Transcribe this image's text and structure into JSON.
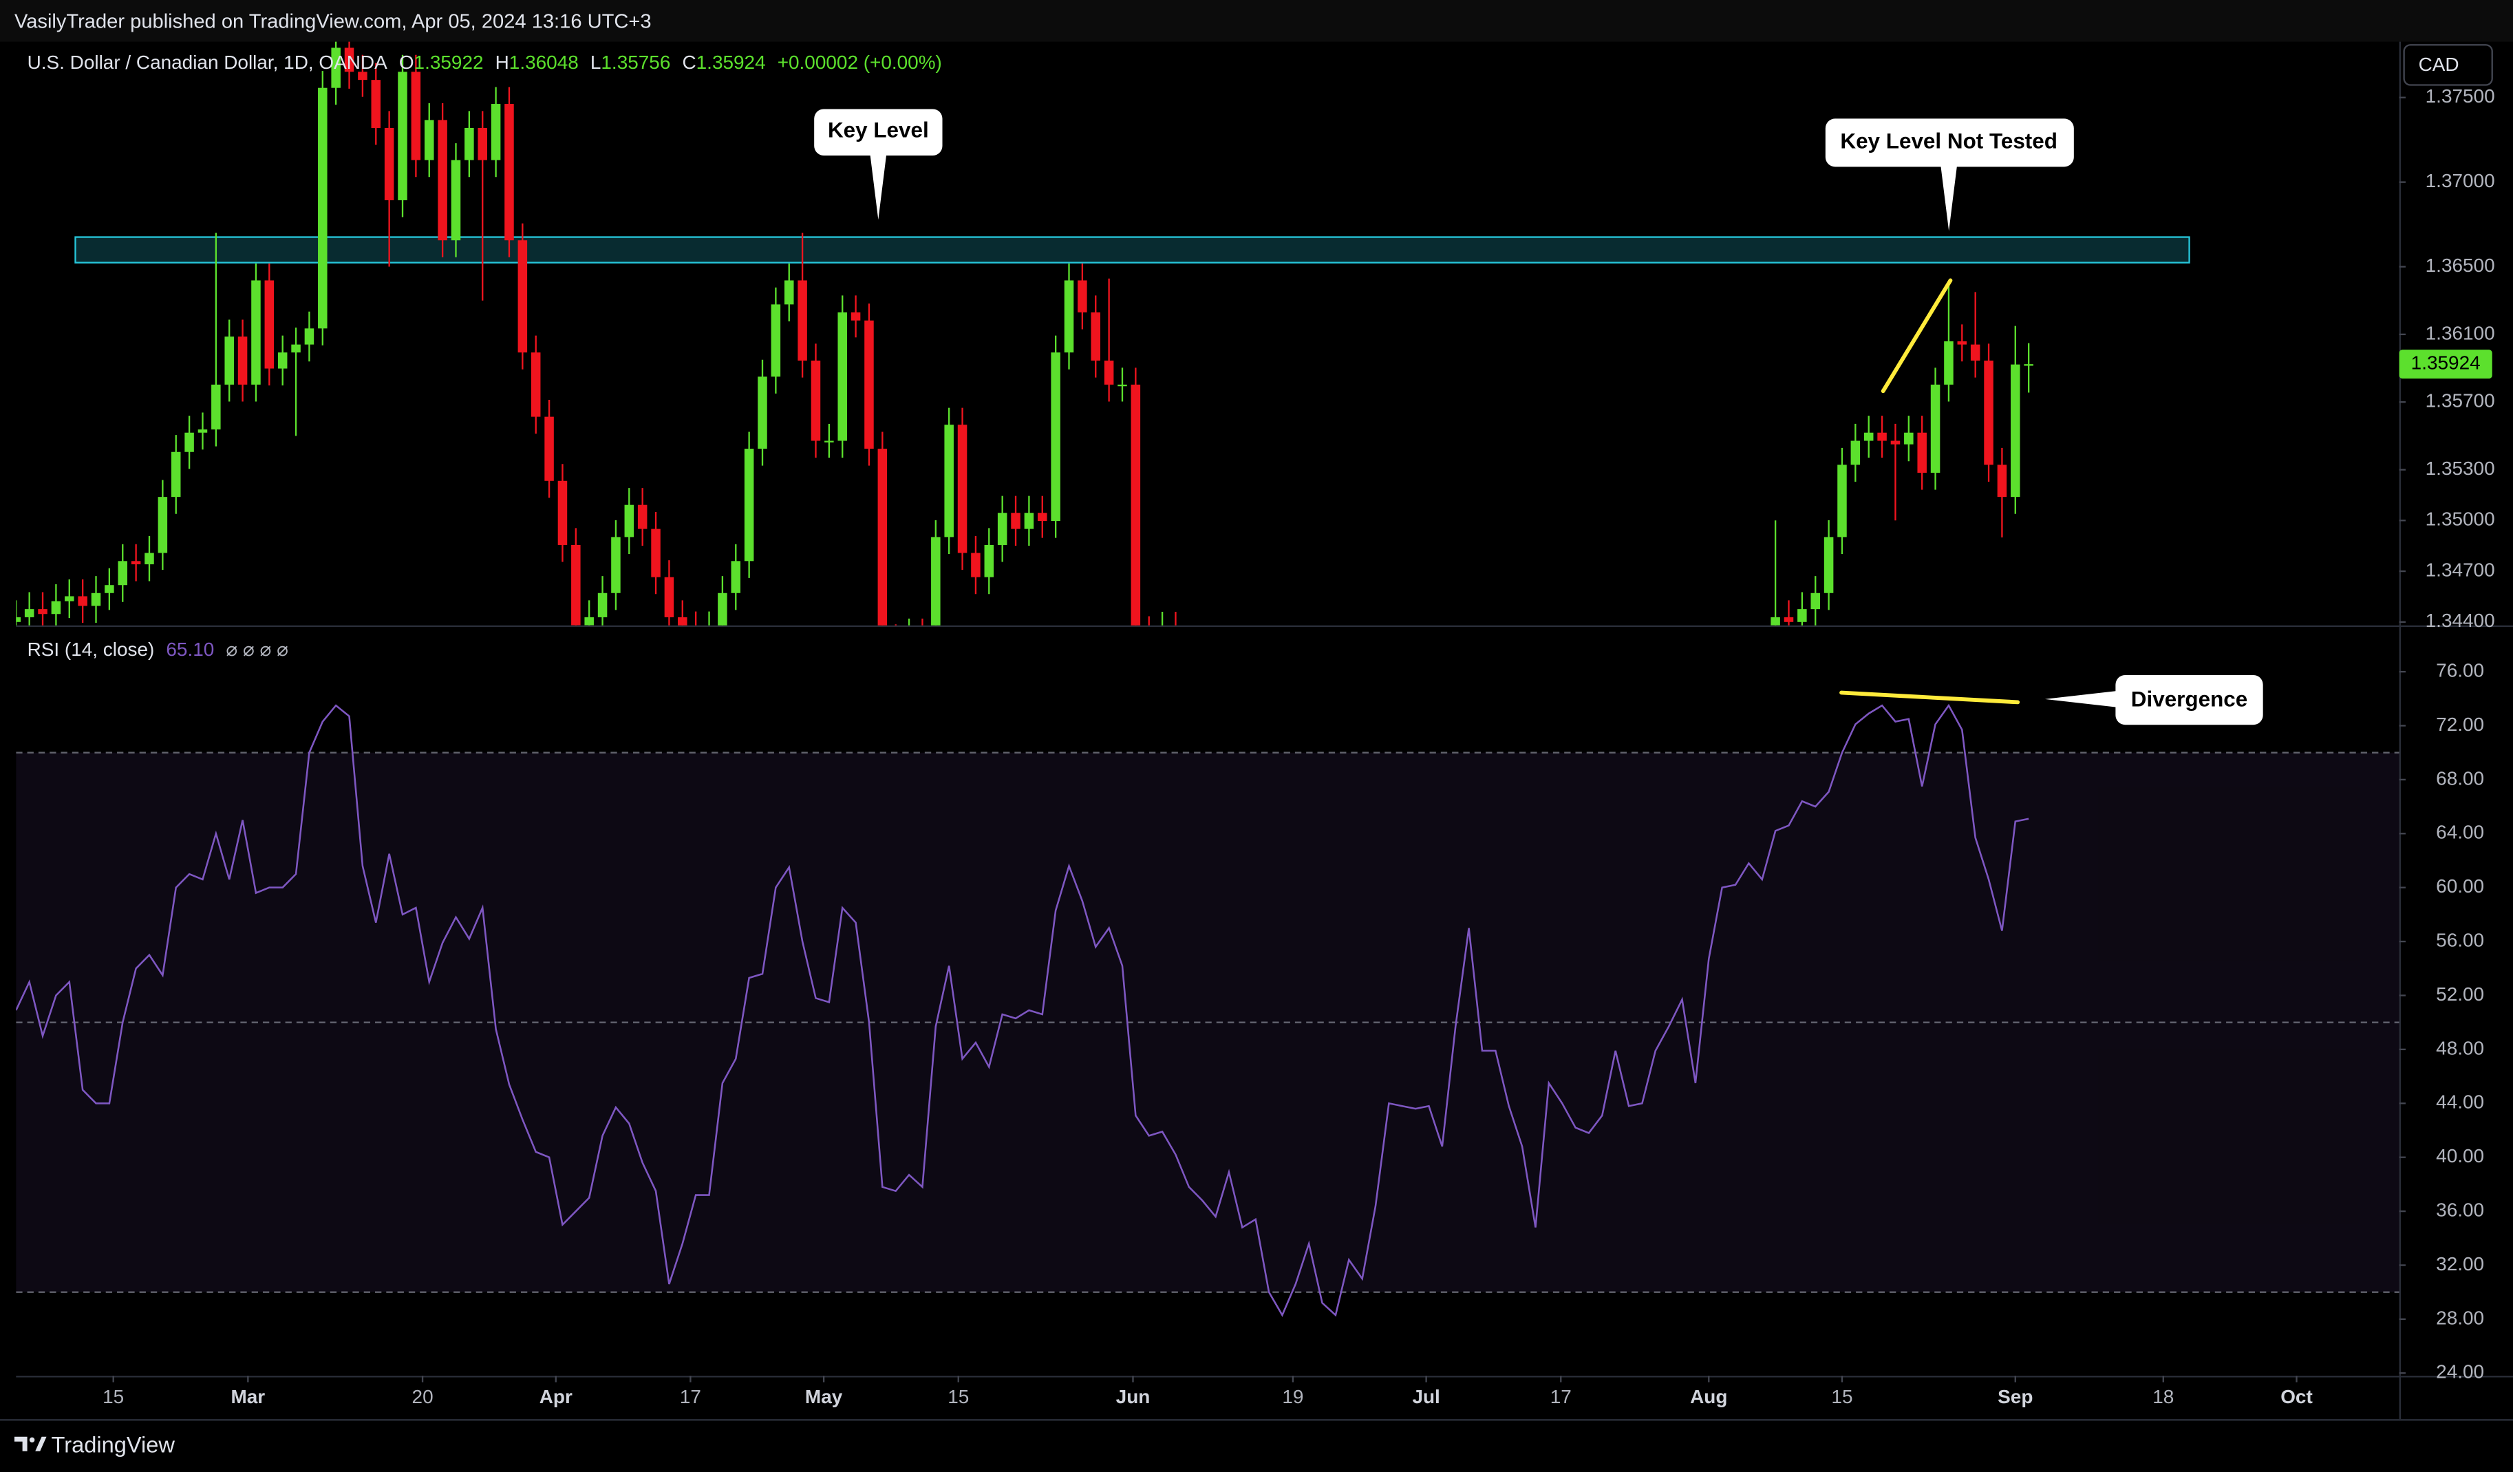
{
  "header": {
    "published": "VasilyTrader published on TradingView.com, Apr 05, 2024 13:16 UTC+3"
  },
  "footer": {
    "brand": "TradingView"
  },
  "currency_button": "CAD",
  "chart_data": [
    {
      "type": "candlestick",
      "title": "U.S. Dollar / Canadian Dollar, 1D, OANDA",
      "ohlc_prefixes": [
        "O",
        "H",
        "L",
        "C"
      ],
      "change_label": "+0.00002 (+0.00%)",
      "up_color": "#5ce02d",
      "down_color": "#f0141e",
      "grid": false,
      "xlim": [
        0,
        178.8
      ],
      "ylim": [
        1.3438,
        1.3783
      ],
      "yticks": [
        {
          "value": 1.375,
          "label": "1.37500"
        },
        {
          "value": 1.37,
          "label": "1.37000"
        },
        {
          "value": 1.365,
          "label": "1.36500"
        },
        {
          "value": 1.361,
          "label": "1.36100"
        },
        {
          "value": 1.357,
          "label": "1.35700"
        },
        {
          "value": 1.353,
          "label": "1.35300"
        },
        {
          "value": 1.35,
          "label": "1.35000"
        },
        {
          "value": 1.347,
          "label": "1.34700"
        },
        {
          "value": 1.344,
          "label": "1.34400"
        }
      ],
      "open": [
        1.344,
        1.34428,
        1.34476,
        1.34447,
        1.34523,
        1.34552,
        1.34495,
        1.34571,
        1.34618,
        1.3476,
        1.34741,
        1.34808,
        1.35139,
        1.35405,
        1.35519,
        1.35538,
        1.35803,
        1.36087,
        1.35803,
        1.36419,
        1.35898,
        1.35993,
        1.3604,
        1.36135,
        1.37557,
        1.37794,
        1.37652,
        1.37604,
        1.3732,
        1.36893,
        1.37652,
        1.3713,
        1.37367,
        1.36656,
        1.3713,
        1.3732,
        1.3713,
        1.37462,
        1.36656,
        1.35993,
        1.35613,
        1.35234,
        1.34855,
        1.34381,
        1.34428,
        1.34571,
        1.34902,
        1.35092,
        1.3495,
        1.34665,
        1.34428,
        1.34362,
        1.34334,
        1.34362,
        1.34571,
        1.3476,
        1.35424,
        1.3585,
        1.36277,
        1.36419,
        1.35945,
        1.35471,
        1.35471,
        1.3623,
        1.36182,
        1.35424,
        1.34286,
        1.3425,
        1.3432,
        1.343,
        1.34902,
        1.35566,
        1.34808,
        1.34665,
        1.34855,
        1.35045,
        1.3495,
        1.35045,
        1.34997,
        1.35993,
        1.36419,
        1.3623,
        1.35945,
        1.35803,
        1.35803,
        1.34334,
        1.3429,
        1.3436,
        null,
        null,
        null,
        null,
        null,
        null,
        null,
        null,
        null,
        null,
        null,
        null,
        null,
        null,
        null,
        null,
        null,
        null,
        null,
        null,
        null,
        null,
        null,
        null,
        null,
        null,
        null,
        null,
        null,
        null,
        null,
        null,
        null,
        null,
        null,
        null,
        null,
        null,
        null,
        null,
        null,
        null,
        null,
        null,
        1.3438,
        1.34428,
        1.344,
        1.34476,
        1.34571,
        1.34902,
        1.35329,
        1.35471,
        1.35519,
        1.35471,
        1.3545,
        1.35519,
        1.35282,
        1.35803,
        1.36059,
        1.3604,
        1.35945,
        1.35329,
        1.35139,
        1.35922
      ],
      "high": [
        1.34528,
        1.34576,
        1.34576,
        1.34623,
        1.34652,
        1.34652,
        1.34671,
        1.34718,
        1.3486,
        1.3486,
        1.34908,
        1.35239,
        1.35505,
        1.35619,
        1.35638,
        1.367,
        1.36187,
        1.36187,
        1.36519,
        1.36519,
        1.36093,
        1.3614,
        1.36235,
        1.37657,
        1.37894,
        1.37894,
        1.37752,
        1.37704,
        1.3742,
        1.37752,
        1.37752,
        1.37467,
        1.37467,
        1.3723,
        1.3742,
        1.3742,
        1.37562,
        1.37562,
        1.36756,
        1.36093,
        1.35713,
        1.35334,
        1.34955,
        1.34528,
        1.34671,
        1.35002,
        1.35192,
        1.35192,
        1.3505,
        1.34765,
        1.34528,
        1.34462,
        1.34462,
        1.34671,
        1.3486,
        1.35524,
        1.3595,
        1.36377,
        1.36519,
        1.367,
        1.36045,
        1.35571,
        1.3633,
        1.3633,
        1.36282,
        1.35524,
        1.34386,
        1.3442,
        1.3442,
        1.35002,
        1.35666,
        1.35666,
        1.34908,
        1.34955,
        1.35145,
        1.35145,
        1.35145,
        1.35145,
        1.36093,
        1.36519,
        1.36519,
        1.3633,
        1.3643,
        1.35903,
        1.35903,
        1.34434,
        1.3446,
        1.3446,
        null,
        null,
        null,
        null,
        null,
        null,
        null,
        null,
        null,
        null,
        null,
        null,
        null,
        null,
        null,
        null,
        null,
        null,
        null,
        null,
        null,
        null,
        null,
        null,
        null,
        null,
        null,
        null,
        null,
        null,
        null,
        null,
        null,
        null,
        null,
        null,
        null,
        null,
        null,
        null,
        null,
        null,
        null,
        null,
        1.35,
        1.34528,
        1.34576,
        1.34671,
        1.35002,
        1.35429,
        1.35571,
        1.35619,
        1.35619,
        1.35571,
        1.35619,
        1.35619,
        1.35903,
        1.364,
        1.36159,
        1.3635,
        1.36045,
        1.35429,
        1.3615,
        1.36048
      ],
      "low": [
        1.343,
        1.34328,
        1.34347,
        1.34347,
        1.34423,
        1.34395,
        1.34395,
        1.34471,
        1.34518,
        1.34641,
        1.34641,
        1.34708,
        1.35039,
        1.35305,
        1.35419,
        1.35438,
        1.35703,
        1.35703,
        1.35703,
        1.35798,
        1.35798,
        1.355,
        1.3594,
        1.36035,
        1.37457,
        1.37552,
        1.37504,
        1.3722,
        1.365,
        1.36793,
        1.3703,
        1.3703,
        1.36556,
        1.36556,
        1.3703,
        1.363,
        1.3703,
        1.36556,
        1.35893,
        1.35513,
        1.35134,
        1.34755,
        1.34281,
        1.34281,
        1.34328,
        1.34471,
        1.34802,
        1.3485,
        1.34565,
        1.34328,
        1.34262,
        1.34234,
        1.34234,
        1.34262,
        1.34471,
        1.3466,
        1.35324,
        1.3575,
        1.36177,
        1.35845,
        1.35371,
        1.35371,
        1.35371,
        1.36082,
        1.35324,
        1.34186,
        1.3415,
        1.3415,
        1.342,
        1.342,
        1.34802,
        1.34708,
        1.34565,
        1.34565,
        1.34755,
        1.3485,
        1.3485,
        1.34897,
        1.34897,
        1.35893,
        1.3613,
        1.35845,
        1.35703,
        1.35703,
        1.34234,
        1.3419,
        1.3419,
        1.3421,
        null,
        null,
        null,
        null,
        null,
        null,
        null,
        null,
        null,
        null,
        null,
        null,
        null,
        null,
        null,
        null,
        null,
        null,
        null,
        null,
        null,
        null,
        null,
        null,
        null,
        null,
        null,
        null,
        null,
        null,
        null,
        null,
        null,
        null,
        null,
        null,
        null,
        null,
        null,
        null,
        null,
        null,
        null,
        null,
        1.3428,
        1.343,
        1.343,
        1.34376,
        1.34471,
        1.34802,
        1.35229,
        1.35371,
        1.35371,
        1.35,
        1.3535,
        1.35182,
        1.35182,
        1.35703,
        1.3594,
        1.35845,
        1.35229,
        1.349,
        1.35039,
        1.35756
      ],
      "close": [
        1.34428,
        1.34476,
        1.34447,
        1.34523,
        1.34552,
        1.34495,
        1.34571,
        1.34618,
        1.3476,
        1.34741,
        1.34808,
        1.35139,
        1.35405,
        1.35519,
        1.35538,
        1.35803,
        1.36087,
        1.35803,
        1.36419,
        1.35898,
        1.35993,
        1.3604,
        1.36135,
        1.37557,
        1.37794,
        1.37652,
        1.37604,
        1.3732,
        1.36893,
        1.37652,
        1.3713,
        1.37367,
        1.36656,
        1.3713,
        1.3732,
        1.3713,
        1.37462,
        1.36656,
        1.35993,
        1.35613,
        1.35234,
        1.34855,
        1.34381,
        1.34428,
        1.34571,
        1.34902,
        1.35092,
        1.3495,
        1.34665,
        1.34428,
        1.34362,
        1.34334,
        1.34362,
        1.34571,
        1.3476,
        1.35424,
        1.3585,
        1.36277,
        1.36419,
        1.35945,
        1.35471,
        1.35471,
        1.3623,
        1.36182,
        1.35424,
        1.34286,
        1.3425,
        1.3432,
        1.343,
        1.34902,
        1.35566,
        1.34808,
        1.34665,
        1.34855,
        1.35045,
        1.3495,
        1.35045,
        1.34997,
        1.35993,
        1.36419,
        1.3623,
        1.35945,
        1.35803,
        1.35803,
        1.34334,
        1.3429,
        1.3436,
        1.3431,
        null,
        null,
        null,
        null,
        null,
        null,
        null,
        null,
        null,
        null,
        null,
        null,
        null,
        null,
        null,
        null,
        null,
        null,
        null,
        null,
        null,
        null,
        null,
        null,
        null,
        null,
        null,
        null,
        null,
        null,
        null,
        null,
        null,
        null,
        null,
        null,
        null,
        null,
        null,
        null,
        null,
        null,
        null,
        null,
        1.34428,
        1.344,
        1.34476,
        1.34571,
        1.34902,
        1.35329,
        1.35471,
        1.35519,
        1.35471,
        1.3545,
        1.35519,
        1.35282,
        1.35803,
        1.36059,
        1.3604,
        1.35945,
        1.35329,
        1.35139,
        1.35922,
        1.35924
      ],
      "zones": [
        {
          "x": [
            4.45,
            163.05
          ],
          "y": [
            1.36524,
            1.36675
          ],
          "color": "#26c6da"
        }
      ],
      "lines": [
        {
          "x": [
            140.08,
            145.13
          ],
          "y": [
            1.35765,
            1.36419
          ],
          "color": "#ffeb3b"
        }
      ],
      "annotations": [
        {
          "text": "Key Level"
        },
        {
          "text": "Key Level Not Tested"
        }
      ]
    },
    {
      "type": "line",
      "title": "RSI (14, close)",
      "extra": "⌀ ⌀ ⌀ ⌀",
      "last_value_label": "65.10",
      "color": "#7e57c2",
      "ylim": [
        23.8,
        79.2
      ],
      "yticks": [
        {
          "value": 76,
          "label": "76.00"
        },
        {
          "value": 72,
          "label": "72.00"
        },
        {
          "value": 68,
          "label": "68.00"
        },
        {
          "value": 64,
          "label": "64.00"
        },
        {
          "value": 60,
          "label": "60.00"
        },
        {
          "value": 56,
          "label": "56.00"
        },
        {
          "value": 52,
          "label": "52.00"
        },
        {
          "value": 48,
          "label": "48.00"
        },
        {
          "value": 44,
          "label": "44.00"
        },
        {
          "value": 40,
          "label": "40.00"
        },
        {
          "value": 36,
          "label": "36.00"
        },
        {
          "value": 32,
          "label": "32.00"
        },
        {
          "value": 28,
          "label": "28.00"
        },
        {
          "value": 24,
          "label": "24.00"
        }
      ],
      "bands": [
        70,
        50,
        30
      ],
      "xticks": [
        {
          "value": 7.3,
          "label": "15"
        },
        {
          "value": 17.4,
          "label": "Mar"
        },
        {
          "value": 30.5,
          "label": "20"
        },
        {
          "value": 40.5,
          "label": "Apr"
        },
        {
          "value": 50.6,
          "label": "17"
        },
        {
          "value": 60.6,
          "label": "May"
        },
        {
          "value": 70.7,
          "label": "15"
        },
        {
          "value": 83.8,
          "label": "Jun"
        },
        {
          "value": 95.8,
          "label": "19"
        },
        {
          "value": 105.8,
          "label": "Jul"
        },
        {
          "value": 115.9,
          "label": "17"
        },
        {
          "value": 127,
          "label": "Aug"
        },
        {
          "value": 137,
          "label": "15"
        },
        {
          "value": 150,
          "label": "Sep"
        },
        {
          "value": 161.1,
          "label": "18"
        },
        {
          "value": 171.1,
          "label": "Oct"
        }
      ],
      "values": [
        50.9,
        53,
        49,
        52,
        53,
        45,
        44,
        44,
        50,
        54,
        55,
        53.5,
        60,
        61,
        60.6,
        64,
        60.6,
        65,
        59.6,
        60,
        60,
        61,
        70,
        72.3,
        73.5,
        72.7,
        61.6,
        57.4,
        62.5,
        58,
        58.5,
        53,
        55.9,
        57.8,
        56.2,
        58.5,
        49.5,
        45.4,
        42.8,
        40.4,
        40,
        35,
        36,
        37,
        41.6,
        43.7,
        42.5,
        39.6,
        37.5,
        30.6,
        33.6,
        37.2,
        37.2,
        45.5,
        47.3,
        53.3,
        53.6,
        60,
        61.5,
        56,
        51.8,
        51.5,
        58.5,
        57.4,
        50,
        37.8,
        37.5,
        38.7,
        37.8,
        49.7,
        54.2,
        47.3,
        48.5,
        46.7,
        50.6,
        50.3,
        50.9,
        50.6,
        58.3,
        61.6,
        59,
        55.6,
        57,
        54.2,
        43.1,
        41.6,
        41.9,
        40.2,
        37.8,
        36.8,
        35.6,
        38.9,
        34.8,
        35.4,
        30,
        28.3,
        30.6,
        33.6,
        29.2,
        28.3,
        32.4,
        31,
        36.4,
        44,
        43.8,
        43.6,
        43.8,
        40.8,
        49.7,
        57,
        47.9,
        47.9,
        43.8,
        40.8,
        34.8,
        45.5,
        44,
        42.2,
        41.8,
        43.1,
        47.9,
        43.8,
        44,
        47.9,
        49.7,
        51.7,
        45.5,
        54.7,
        60,
        60.2,
        61.8,
        60.6,
        64.2,
        64.6,
        66.4,
        66,
        67.1,
        70,
        72.1,
        72.9,
        73.5,
        72.3,
        72.5,
        67.5,
        72.1,
        73.5,
        71.7,
        63.7,
        60.6,
        56.8,
        64.9,
        65.1
      ],
      "lines": [
        {
          "x": [
            136.95,
            150.18
          ],
          "y": [
            74.45,
            73.74
          ],
          "color": "#ffeb3b"
        }
      ],
      "annotations": [
        {
          "text": "Divergence"
        }
      ]
    }
  ]
}
